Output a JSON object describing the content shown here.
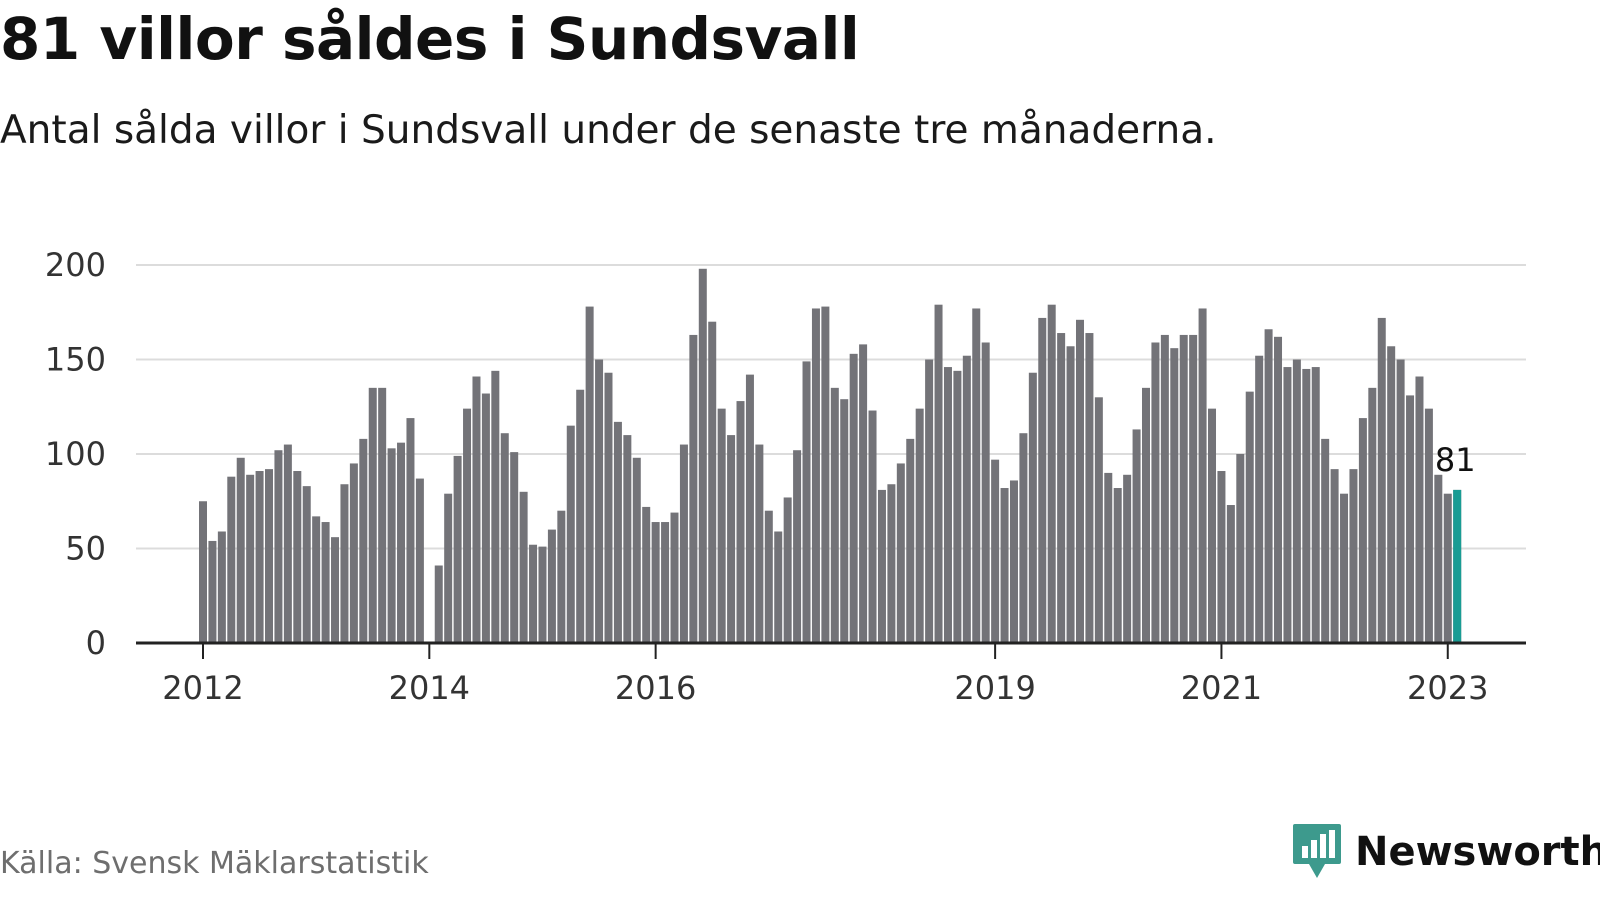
{
  "title": "81 villor såldes i Sundsvall",
  "subtitle": "Antal sålda villor i Sundsvall under de senaste tre månaderna.",
  "source": "Källa: Svensk Mäklarstatistik",
  "brand": {
    "name": "Newsworthy",
    "icon": "newsworthy-logo-icon",
    "color": "#3d9a8d"
  },
  "colors": {
    "bar": "#737378",
    "highlight": "#199c94",
    "grid": "#dcdcdc",
    "axis": "#222222"
  },
  "chart_data": {
    "type": "bar",
    "title": "81 villor såldes i Sundsvall",
    "subtitle": "Antal sålda villor i Sundsvall under de senaste tre månaderna.",
    "xlabel": "",
    "ylabel": "",
    "ylim": [
      0,
      200
    ],
    "yticks": [
      0,
      50,
      100,
      150,
      200
    ],
    "grid": true,
    "start_month": "2012-01",
    "x_tick_labels": [
      {
        "label": "2012",
        "month": "2012-01"
      },
      {
        "label": "2014",
        "month": "2014-01"
      },
      {
        "label": "2016",
        "month": "2016-01"
      },
      {
        "label": "2019",
        "month": "2019-01"
      },
      {
        "label": "2021",
        "month": "2021-01"
      },
      {
        "label": "2023",
        "month": "2023-01"
      }
    ],
    "values": [
      75,
      54,
      59,
      88,
      98,
      89,
      91,
      92,
      102,
      105,
      91,
      83,
      67,
      64,
      56,
      84,
      95,
      108,
      135,
      135,
      103,
      106,
      119,
      87,
      0,
      41,
      79,
      99,
      124,
      141,
      132,
      144,
      111,
      101,
      80,
      52,
      51,
      60,
      70,
      115,
      134,
      178,
      150,
      143,
      117,
      110,
      98,
      72,
      64,
      64,
      69,
      105,
      163,
      198,
      170,
      124,
      110,
      128,
      142,
      105,
      70,
      59,
      77,
      102,
      149,
      177,
      178,
      135,
      129,
      153,
      158,
      123,
      81,
      84,
      95,
      108,
      124,
      150,
      179,
      146,
      144,
      152,
      177,
      159,
      97,
      82,
      86,
      111,
      143,
      172,
      179,
      164,
      157,
      171,
      164,
      130,
      90,
      82,
      89,
      113,
      135,
      159,
      163,
      156,
      163,
      163,
      177,
      124,
      91,
      73,
      100,
      133,
      152,
      166,
      162,
      146,
      150,
      145,
      146,
      108,
      92,
      79,
      92,
      119,
      135,
      172,
      157,
      150,
      131,
      141,
      124,
      89,
      79,
      81
    ],
    "highlight": {
      "value": 81,
      "label": "81",
      "month": "2023-02"
    }
  }
}
